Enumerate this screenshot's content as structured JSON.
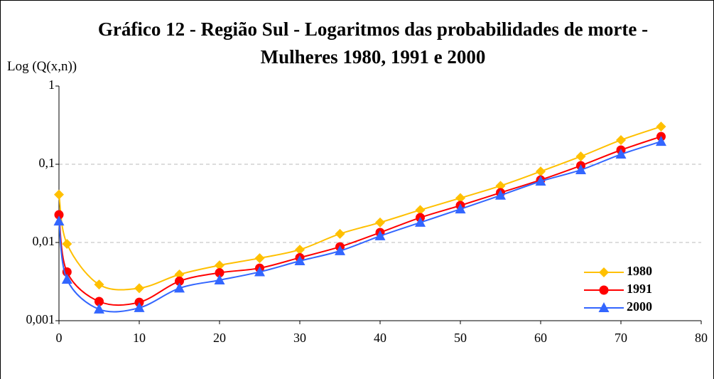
{
  "chart_data": {
    "type": "line",
    "title": "Gráfico 12 - Região Sul - Logaritmos das probabilidades de morte - Mulheres 1980, 1991 e 2000",
    "y_label": "Log (Q(x,n))",
    "x": [
      0,
      1,
      5,
      10,
      15,
      20,
      25,
      30,
      35,
      40,
      45,
      50,
      55,
      60,
      65,
      70,
      75
    ],
    "series": [
      {
        "name": "1980",
        "color": "#ffc000",
        "marker": "diamond",
        "values": [
          0.041,
          0.0096,
          0.0029,
          0.0026,
          0.0039,
          0.0051,
          0.0063,
          0.0081,
          0.0129,
          0.018,
          0.026,
          0.037,
          0.053,
          0.081,
          0.126,
          0.204,
          0.303
        ]
      },
      {
        "name": "1991",
        "color": "#ff0000",
        "marker": "circle",
        "values": [
          0.0226,
          0.0042,
          0.00176,
          0.00172,
          0.0032,
          0.0041,
          0.0047,
          0.0064,
          0.0088,
          0.0134,
          0.0208,
          0.0297,
          0.0433,
          0.063,
          0.096,
          0.152,
          0.226
        ]
      },
      {
        "name": "2000",
        "color": "#3366ff",
        "marker": "triangle",
        "values": [
          0.0187,
          0.00337,
          0.0014,
          0.00146,
          0.0026,
          0.0033,
          0.0042,
          0.0058,
          0.0078,
          0.0121,
          0.018,
          0.0267,
          0.04,
          0.0605,
          0.0846,
          0.134,
          0.195
        ]
      }
    ],
    "xlim": [
      0,
      80
    ],
    "xticks": [
      0,
      10,
      20,
      30,
      40,
      50,
      60,
      70,
      80
    ],
    "ylim": [
      0.001,
      1
    ],
    "yticks": [
      {
        "value": 0.001,
        "label": "0,001"
      },
      {
        "value": 0.01,
        "label": "0,01"
      },
      {
        "value": 0.1,
        "label": "0,1"
      },
      1
    ],
    "log_y": true,
    "grid": true,
    "legend": "lower right"
  }
}
